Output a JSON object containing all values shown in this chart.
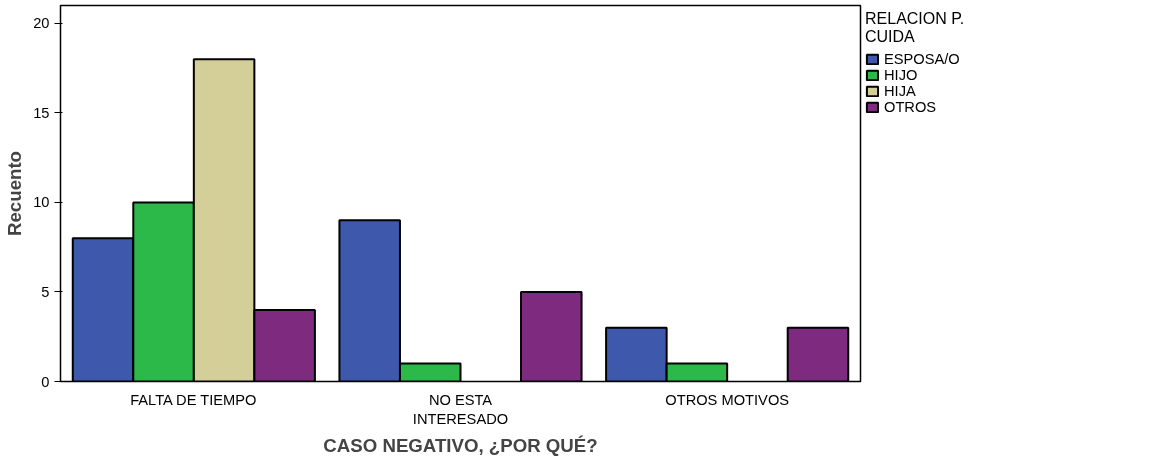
{
  "chart_data": {
    "type": "bar",
    "xlabel": "CASO NEGATIVO, ¿POR QUÉ?",
    "ylabel": "Recuento",
    "legend_title": "RELACION P. CUIDA",
    "categories": [
      "FALTA DE TIEMPO",
      "NO ESTA INTERESADO",
      "OTROS MOTIVOS"
    ],
    "series": [
      {
        "name": "ESPOSA/O",
        "color": "#3e58ac",
        "values": [
          8,
          9,
          3
        ]
      },
      {
        "name": "HIJO",
        "color": "#2db84a",
        "values": [
          10,
          1,
          1
        ]
      },
      {
        "name": "HIJA",
        "color": "#d4ce98",
        "values": [
          18,
          null,
          null
        ]
      },
      {
        "name": "OTROS",
        "color": "#7e2a7f",
        "values": [
          4,
          5,
          3
        ]
      }
    ],
    "ylim": [
      0,
      21
    ],
    "yticks": [
      0,
      5,
      10,
      15,
      20
    ],
    "grid": false,
    "legend": "top right"
  }
}
